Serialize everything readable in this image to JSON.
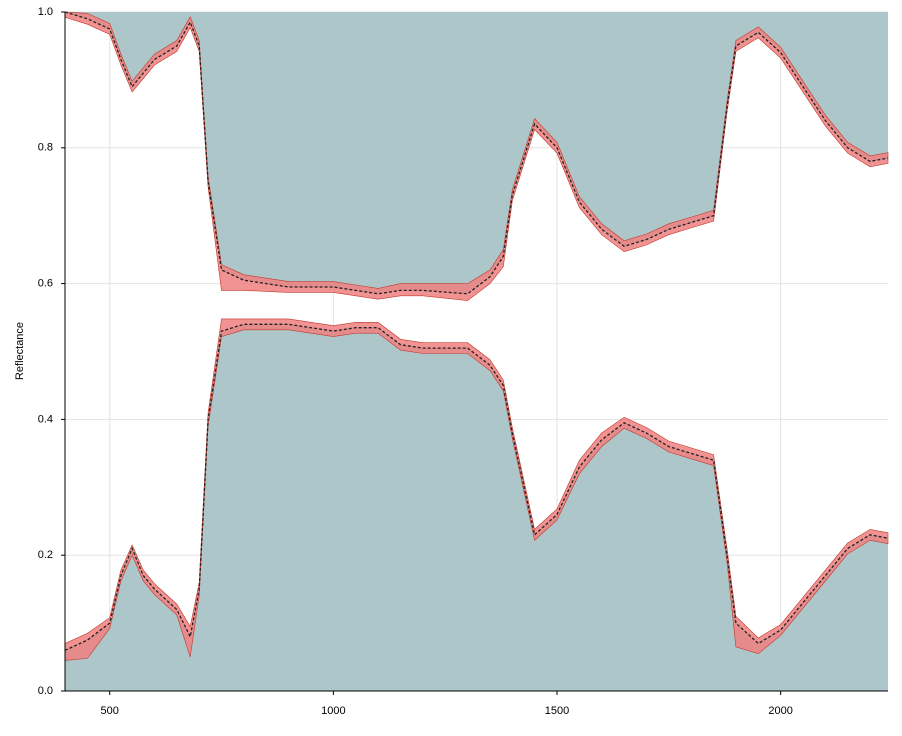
{
  "chart_data": {
    "type": "area-band",
    "y_label": "Reflectance",
    "x": [
      400,
      450,
      500,
      525,
      550,
      575,
      600,
      650,
      680,
      700,
      720,
      750,
      800,
      900,
      1000,
      1050,
      1100,
      1150,
      1200,
      1300,
      1350,
      1380,
      1400,
      1450,
      1500,
      1550,
      1600,
      1650,
      1700,
      1750,
      1800,
      1850,
      1880,
      1900,
      1950,
      2000,
      2050,
      2100,
      2150,
      2200,
      2240
    ],
    "xlim": [
      400,
      2240
    ],
    "xticks": [
      500,
      1000,
      1500,
      2000
    ],
    "ylim": [
      0,
      1
    ],
    "yticks": [
      {
        "value": 0,
        "label": "0.0"
      },
      0.2,
      0.4,
      0.6,
      0.8,
      {
        "value": 1,
        "label": "1.0"
      }
    ],
    "grid": true,
    "fill_color": "#adc6c9",
    "band_color": "#f08080",
    "line_color": "#222222",
    "series": [
      {
        "fill": "below",
        "values": [
          0.06,
          0.075,
          0.1,
          0.17,
          0.21,
          0.17,
          0.15,
          0.12,
          0.08,
          0.15,
          0.4,
          0.53,
          0.54,
          0.54,
          0.53,
          0.535,
          0.535,
          0.51,
          0.505,
          0.505,
          0.48,
          0.45,
          0.38,
          0.23,
          0.26,
          0.33,
          0.37,
          0.395,
          0.38,
          0.36,
          0.35,
          0.34,
          0.2,
          0.1,
          0.07,
          0.09,
          0.13,
          0.17,
          0.21,
          0.23,
          0.225
        ],
        "min": [
          0.045,
          0.048,
          0.092,
          0.162,
          0.2,
          0.162,
          0.142,
          0.112,
          0.05,
          0.14,
          0.39,
          0.522,
          0.532,
          0.532,
          0.522,
          0.527,
          0.527,
          0.502,
          0.497,
          0.497,
          0.472,
          0.442,
          0.372,
          0.222,
          0.252,
          0.32,
          0.36,
          0.387,
          0.372,
          0.352,
          0.342,
          0.332,
          0.19,
          0.065,
          0.055,
          0.082,
          0.122,
          0.162,
          0.202,
          0.222,
          0.217
        ],
        "max": [
          0.07,
          0.085,
          0.108,
          0.178,
          0.215,
          0.178,
          0.158,
          0.128,
          0.095,
          0.16,
          0.41,
          0.548,
          0.548,
          0.548,
          0.538,
          0.543,
          0.543,
          0.518,
          0.513,
          0.513,
          0.488,
          0.458,
          0.388,
          0.238,
          0.268,
          0.34,
          0.38,
          0.403,
          0.388,
          0.368,
          0.358,
          0.348,
          0.21,
          0.11,
          0.078,
          0.098,
          0.138,
          0.178,
          0.218,
          0.238,
          0.233
        ]
      },
      {
        "fill": "above",
        "values": [
          1.0,
          0.99,
          0.975,
          0.93,
          0.89,
          0.91,
          0.93,
          0.95,
          0.985,
          0.95,
          0.75,
          0.62,
          0.605,
          0.595,
          0.595,
          0.59,
          0.585,
          0.59,
          0.59,
          0.585,
          0.61,
          0.64,
          0.73,
          0.835,
          0.8,
          0.72,
          0.68,
          0.655,
          0.665,
          0.68,
          0.69,
          0.7,
          0.86,
          0.95,
          0.97,
          0.94,
          0.89,
          0.84,
          0.8,
          0.78,
          0.785
        ],
        "min": [
          0.992,
          0.982,
          0.967,
          0.922,
          0.882,
          0.902,
          0.922,
          0.942,
          0.977,
          0.942,
          0.742,
          0.59,
          0.59,
          0.587,
          0.587,
          0.582,
          0.577,
          0.582,
          0.582,
          0.575,
          0.6,
          0.625,
          0.722,
          0.827,
          0.792,
          0.712,
          0.672,
          0.647,
          0.657,
          0.672,
          0.682,
          0.692,
          0.852,
          0.942,
          0.962,
          0.932,
          0.882,
          0.832,
          0.792,
          0.772,
          0.777
        ],
        "max": [
          1.0,
          0.998,
          0.983,
          0.938,
          0.898,
          0.918,
          0.938,
          0.958,
          0.993,
          0.958,
          0.758,
          0.628,
          0.613,
          0.603,
          0.603,
          0.598,
          0.593,
          0.6,
          0.6,
          0.6,
          0.62,
          0.65,
          0.738,
          0.843,
          0.808,
          0.728,
          0.688,
          0.663,
          0.673,
          0.688,
          0.698,
          0.708,
          0.868,
          0.958,
          0.978,
          0.948,
          0.898,
          0.848,
          0.808,
          0.788,
          0.793
        ]
      }
    ]
  }
}
